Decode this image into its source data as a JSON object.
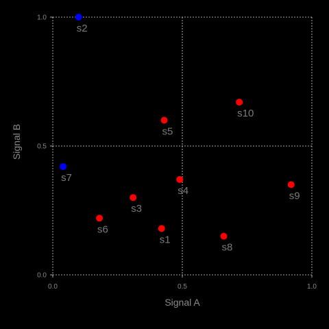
{
  "chart_data": {
    "type": "scatter",
    "xlabel": "Signal A",
    "ylabel": "Signal B",
    "xlim": [
      0.0,
      1.0
    ],
    "ylim": [
      0.0,
      1.0
    ],
    "x_ticks": [
      0.0,
      0.5,
      1.0
    ],
    "y_ticks": [
      0.0,
      0.5,
      1.0
    ],
    "x_tick_labels": [
      "0.0",
      "0.5",
      "1.0"
    ],
    "y_tick_labels": [
      "0.0",
      "0.5",
      "1.0"
    ],
    "grid": true,
    "points": [
      {
        "label": "s1",
        "x": 0.42,
        "y": 0.18,
        "color": "#ff0000"
      },
      {
        "label": "s2",
        "x": 0.1,
        "y": 1.0,
        "color": "#0000ff"
      },
      {
        "label": "s3",
        "x": 0.31,
        "y": 0.3,
        "color": "#ff0000"
      },
      {
        "label": "s4",
        "x": 0.49,
        "y": 0.37,
        "color": "#ff0000"
      },
      {
        "label": "s5",
        "x": 0.43,
        "y": 0.6,
        "color": "#ff0000"
      },
      {
        "label": "s6",
        "x": 0.18,
        "y": 0.22,
        "color": "#ff0000"
      },
      {
        "label": "s7",
        "x": 0.04,
        "y": 0.42,
        "color": "#0000ff"
      },
      {
        "label": "s8",
        "x": 0.66,
        "y": 0.15,
        "color": "#ff0000"
      },
      {
        "label": "s9",
        "x": 0.92,
        "y": 0.35,
        "color": "#ff0000"
      },
      {
        "label": "s10",
        "x": 0.72,
        "y": 0.67,
        "color": "#ff0000"
      }
    ]
  }
}
